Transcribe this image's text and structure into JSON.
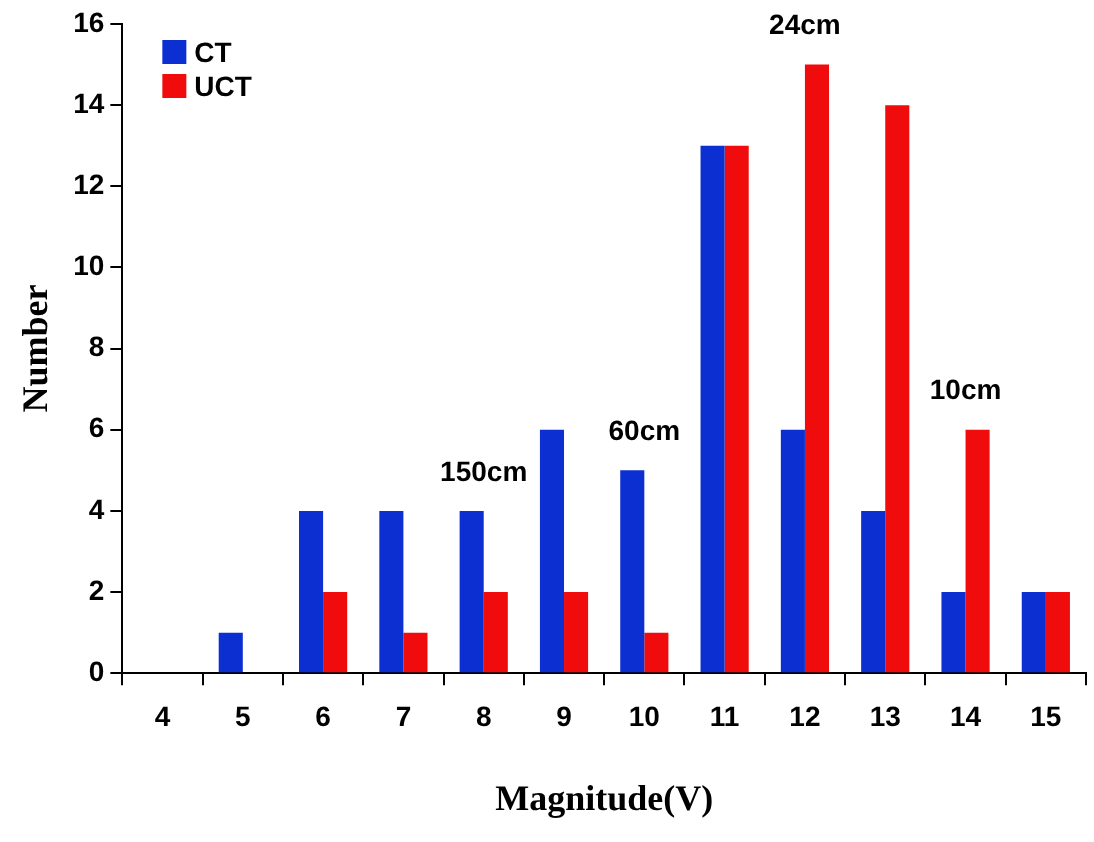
{
  "chart_data": {
    "type": "bar",
    "xlabel": "Magnitude(V)",
    "ylabel": "Number",
    "categories": [
      "4",
      "5",
      "6",
      "7",
      "8",
      "9",
      "10",
      "11",
      "12",
      "13",
      "14",
      "15"
    ],
    "series": [
      {
        "name": "CT",
        "color": "#0b2fd0",
        "values": [
          0,
          1,
          4,
          4,
          4,
          6,
          5,
          13,
          6,
          4,
          2,
          2
        ]
      },
      {
        "name": "UCT",
        "color": "#f00c0c",
        "values": [
          0,
          0,
          2,
          1,
          2,
          2,
          1,
          13,
          15,
          14,
          6,
          2
        ]
      }
    ],
    "ylim": [
      0,
      16
    ],
    "yticks": [
      0,
      2,
      4,
      6,
      8,
      10,
      12,
      14,
      16
    ],
    "grid": false,
    "legend": "top left",
    "annotations": [
      {
        "text": "150cm",
        "x": "8",
        "y": 4
      },
      {
        "text": "60cm",
        "x": "10",
        "y": 5
      },
      {
        "text": "24cm",
        "x": "12",
        "y": 15
      },
      {
        "text": "10cm",
        "x": "14",
        "y": 6
      }
    ]
  }
}
